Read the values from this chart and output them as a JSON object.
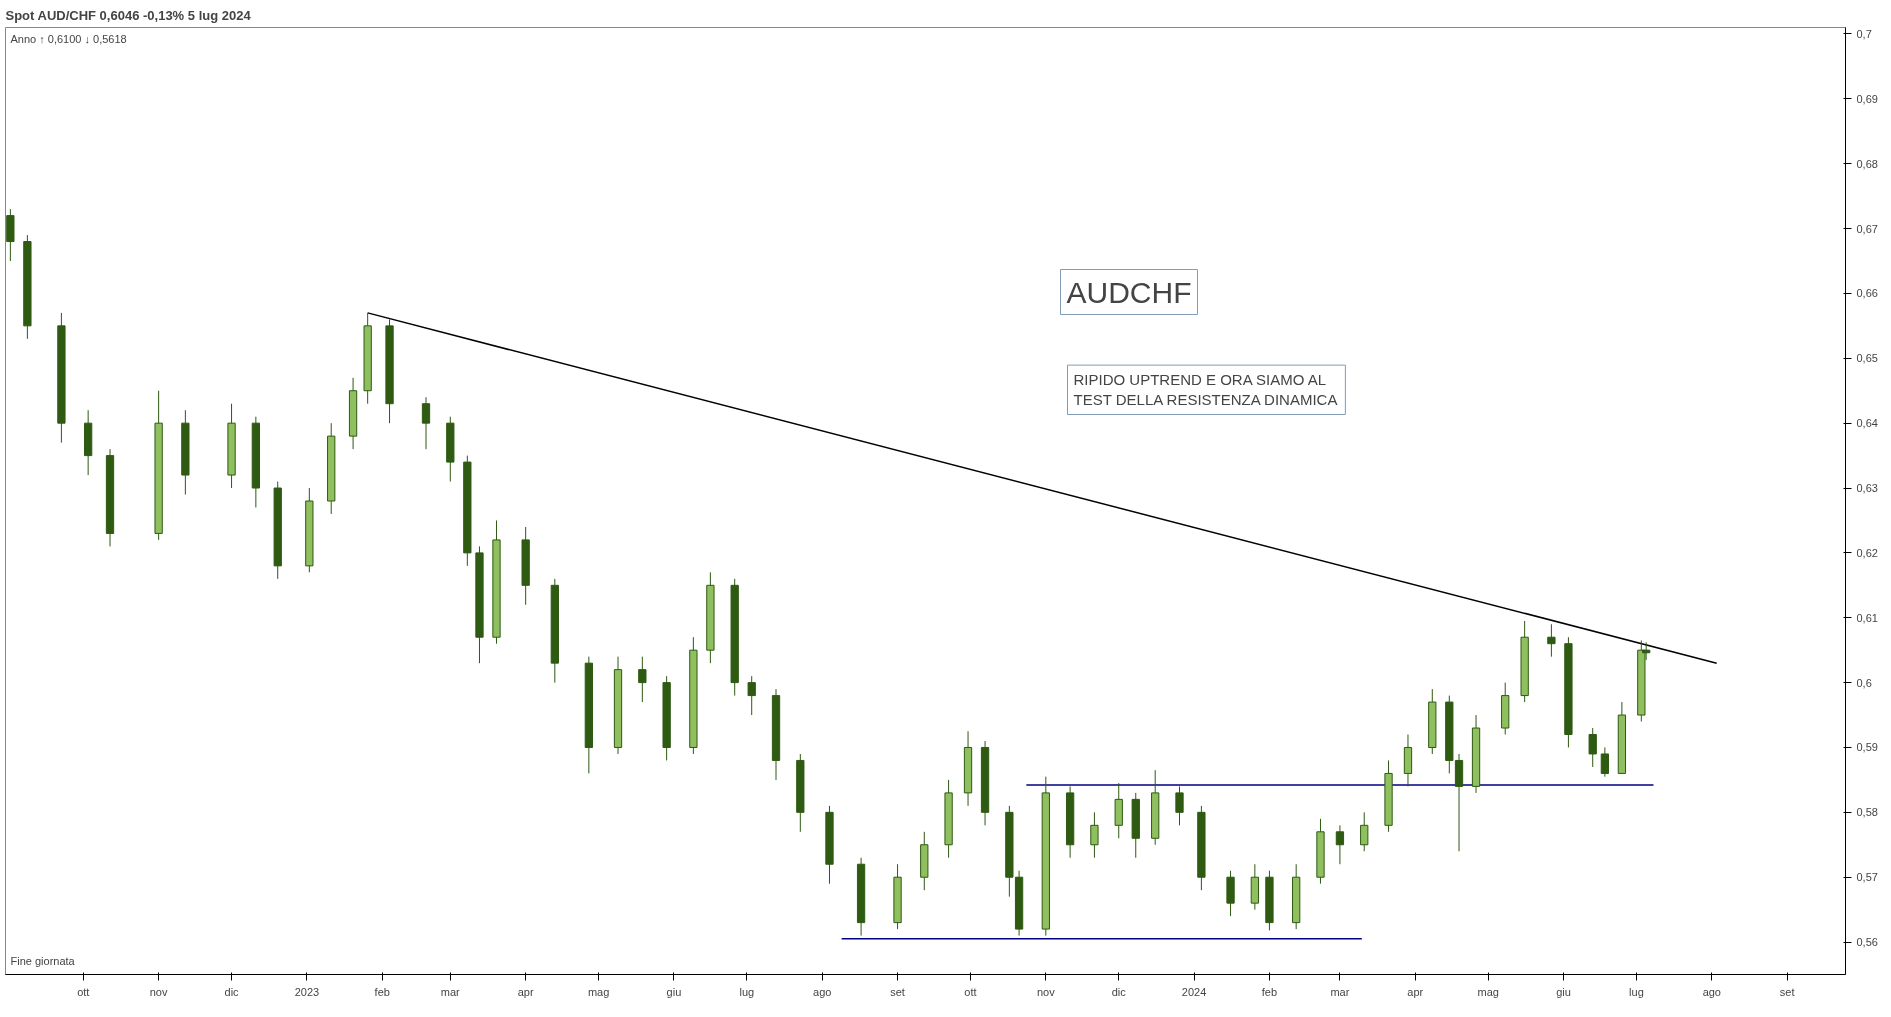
{
  "chart_data": {
    "type": "candlestick",
    "title": "Spot AUD/CHF 0,6046 -0,13% 5 lug 2024",
    "annotations": [
      "AUDCHF",
      "RIPIDO UPTREND E ORA SIAMO AL\nTEST DELLA RESISTENZA DINAMICA",
      "Anno ↑ 0,6100 ↓ 0,5618",
      "Fine giornata"
    ],
    "x": [
      "2022-09-01",
      "2022-09-08",
      "2022-09-22",
      "2022-10-03",
      "2022-10-12",
      "2022-11-01",
      "2022-11-12",
      "2022-12-01",
      "2022-12-11",
      "2022-12-20",
      "2023-01-02",
      "2023-01-11",
      "2023-01-20",
      "2023-01-26",
      "2023-02-04",
      "2023-02-19",
      "2023-03-01",
      "2023-03-08",
      "2023-03-13",
      "2023-03-20",
      "2023-04-01",
      "2023-04-13",
      "2023-04-27",
      "2023-05-09",
      "2023-05-19",
      "2023-05-29",
      "2023-06-09",
      "2023-06-16",
      "2023-06-26",
      "2023-07-03",
      "2023-07-13",
      "2023-07-23",
      "2023-08-04",
      "2023-08-17",
      "2023-09-01",
      "2023-09-12",
      "2023-09-22",
      "2023-09-30",
      "2023-10-07",
      "2023-10-17",
      "2023-10-21",
      "2023-11-01",
      "2023-11-11",
      "2023-11-21",
      "2023-12-01",
      "2023-12-08",
      "2023-12-16",
      "2023-12-26",
      "2024-01-04",
      "2024-01-16",
      "2024-01-26",
      "2024-02-01",
      "2024-02-12",
      "2024-02-22",
      "2024-03-01",
      "2024-03-11",
      "2024-03-21",
      "2024-03-29",
      "2024-04-08",
      "2024-04-15",
      "2024-04-19",
      "2024-04-26",
      "2024-05-08",
      "2024-05-16",
      "2024-05-27",
      "2024-06-03",
      "2024-06-13",
      "2024-06-18",
      "2024-06-25",
      "2024-07-03",
      "2024-07-05"
    ],
    "series": [
      {
        "color": "#2e5a12",
        "ohlc": [
          [
            0.672,
            0.673,
            0.665,
            0.668
          ],
          [
            0.668,
            0.669,
            0.653,
            0.655
          ],
          [
            0.655,
            0.657,
            0.637,
            0.64
          ],
          [
            0.64,
            0.642,
            0.632,
            0.635
          ],
          [
            0.635,
            0.636,
            0.621,
            0.623
          ],
          [
            0.623,
            0.645,
            0.622,
            0.64
          ],
          [
            0.64,
            0.642,
            0.629,
            0.632
          ],
          [
            0.632,
            0.643,
            0.63,
            0.64
          ],
          [
            0.64,
            0.641,
            0.627,
            0.63
          ],
          [
            0.63,
            0.631,
            0.616,
            0.618
          ],
          [
            0.618,
            0.63,
            0.617,
            0.628
          ],
          [
            0.628,
            0.64,
            0.626,
            0.638
          ],
          [
            0.638,
            0.647,
            0.636,
            0.645
          ],
          [
            0.645,
            0.657,
            0.643,
            0.655
          ],
          [
            0.655,
            0.656,
            0.64,
            0.643
          ],
          [
            0.643,
            0.644,
            0.636,
            0.64
          ],
          [
            0.64,
            0.641,
            0.631,
            0.634
          ],
          [
            0.634,
            0.635,
            0.618,
            0.62
          ],
          [
            0.62,
            0.621,
            0.603,
            0.607
          ],
          [
            0.607,
            0.625,
            0.606,
            0.622
          ],
          [
            0.622,
            0.624,
            0.612,
            0.615
          ],
          [
            0.615,
            0.616,
            0.6,
            0.603
          ],
          [
            0.603,
            0.604,
            0.586,
            0.59
          ],
          [
            0.59,
            0.604,
            0.589,
            0.602
          ],
          [
            0.602,
            0.604,
            0.597,
            0.6
          ],
          [
            0.6,
            0.601,
            0.588,
            0.59
          ],
          [
            0.59,
            0.607,
            0.589,
            0.605
          ],
          [
            0.605,
            0.617,
            0.603,
            0.615
          ],
          [
            0.615,
            0.616,
            0.598,
            0.6
          ],
          [
            0.6,
            0.601,
            0.595,
            0.598
          ],
          [
            0.598,
            0.599,
            0.585,
            0.588
          ],
          [
            0.588,
            0.589,
            0.577,
            0.58
          ],
          [
            0.58,
            0.581,
            0.569,
            0.572
          ],
          [
            0.572,
            0.573,
            0.561,
            0.563
          ],
          [
            0.563,
            0.572,
            0.562,
            0.57
          ],
          [
            0.57,
            0.577,
            0.568,
            0.575
          ],
          [
            0.575,
            0.585,
            0.573,
            0.583
          ],
          [
            0.583,
            0.5925,
            0.581,
            0.59
          ],
          [
            0.59,
            0.591,
            0.578,
            0.58
          ],
          [
            0.58,
            0.581,
            0.567,
            0.57
          ],
          [
            0.57,
            0.571,
            0.561,
            0.562
          ],
          [
            0.562,
            0.5855,
            0.561,
            0.583
          ],
          [
            0.583,
            0.584,
            0.573,
            0.575
          ],
          [
            0.575,
            0.58,
            0.573,
            0.578
          ],
          [
            0.578,
            0.5845,
            0.576,
            0.582
          ],
          [
            0.582,
            0.583,
            0.573,
            0.576
          ],
          [
            0.576,
            0.5865,
            0.575,
            0.583
          ],
          [
            0.583,
            0.584,
            0.578,
            0.58
          ],
          [
            0.58,
            0.581,
            0.568,
            0.57
          ],
          [
            0.57,
            0.571,
            0.564,
            0.566
          ],
          [
            0.566,
            0.572,
            0.565,
            0.57
          ],
          [
            0.57,
            0.571,
            0.5618,
            0.563
          ],
          [
            0.563,
            0.572,
            0.562,
            0.57
          ],
          [
            0.57,
            0.579,
            0.569,
            0.577
          ],
          [
            0.577,
            0.578,
            0.572,
            0.575
          ],
          [
            0.575,
            0.58,
            0.574,
            0.578
          ],
          [
            0.578,
            0.588,
            0.577,
            0.586
          ],
          [
            0.586,
            0.592,
            0.584,
            0.59
          ],
          [
            0.59,
            0.599,
            0.589,
            0.597
          ],
          [
            0.597,
            0.598,
            0.586,
            0.588
          ],
          [
            0.588,
            0.589,
            0.574,
            0.584
          ],
          [
            0.584,
            0.595,
            0.583,
            0.593
          ],
          [
            0.593,
            0.6,
            0.592,
            0.598
          ],
          [
            0.598,
            0.6095,
            0.597,
            0.607
          ],
          [
            0.607,
            0.609,
            0.604,
            0.606
          ],
          [
            0.606,
            0.607,
            0.59,
            0.592
          ],
          [
            0.592,
            0.593,
            0.587,
            0.589
          ],
          [
            0.589,
            0.59,
            0.5855,
            0.586
          ],
          [
            0.586,
            0.597,
            0.586,
            0.595
          ],
          [
            0.595,
            0.6065,
            0.594,
            0.605
          ],
          [
            0.605,
            0.6062,
            0.6035,
            0.6046
          ]
        ]
      },
      {
        "type": "line",
        "color": "#000000",
        "x": [
          "2023-01-26",
          "2024-08-03"
        ],
        "values": [
          0.657,
          0.603
        ]
      },
      {
        "type": "line",
        "color": "#000080",
        "x": [
          "2023-10-24",
          "2024-07-08"
        ],
        "values": [
          0.5842,
          0.5842
        ]
      },
      {
        "type": "line",
        "color": "#000080",
        "x": [
          "2023-08-09",
          "2024-03-10"
        ],
        "values": [
          0.5605,
          0.5605
        ]
      }
    ],
    "xlim": [
      "2022-08-30",
      "2024-09-25"
    ],
    "xticks": [
      {
        "value": "2022-10-01",
        "label": "ott"
      },
      {
        "value": "2022-11-01",
        "label": "nov"
      },
      {
        "value": "2022-12-01",
        "label": "dic"
      },
      {
        "value": "2023-01-01",
        "label": "2023"
      },
      {
        "value": "2023-02-01",
        "label": "feb"
      },
      {
        "value": "2023-03-01",
        "label": "mar"
      },
      {
        "value": "2023-04-01",
        "label": "apr"
      },
      {
        "value": "2023-05-01",
        "label": "mag"
      },
      {
        "value": "2023-06-01",
        "label": "giu"
      },
      {
        "value": "2023-07-01",
        "label": "lug"
      },
      {
        "value": "2023-08-01",
        "label": "ago"
      },
      {
        "value": "2023-09-01",
        "label": "set"
      },
      {
        "value": "2023-10-01",
        "label": "ott"
      },
      {
        "value": "2023-11-01",
        "label": "nov"
      },
      {
        "value": "2023-12-01",
        "label": "dic"
      },
      {
        "value": "2024-01-01",
        "label": "2024"
      },
      {
        "value": "2024-02-01",
        "label": "feb"
      },
      {
        "value": "2024-03-01",
        "label": "mar"
      },
      {
        "value": "2024-04-01",
        "label": "apr"
      },
      {
        "value": "2024-05-01",
        "label": "mag"
      },
      {
        "value": "2024-06-01",
        "label": "giu"
      },
      {
        "value": "2024-07-01",
        "label": "lug"
      },
      {
        "value": "2024-08-01",
        "label": "ago"
      },
      {
        "value": "2024-09-01",
        "label": "set"
      }
    ],
    "ylim": [
      0.555,
      0.701
    ],
    "yticks": [
      {
        "value": 0.56,
        "label": "0,56"
      },
      {
        "value": 0.57,
        "label": "0,57"
      },
      {
        "value": 0.58,
        "label": "0,58"
      },
      {
        "value": 0.59,
        "label": "0,59"
      },
      {
        "value": 0.6,
        "label": "0,6"
      },
      {
        "value": 0.61,
        "label": "0,61"
      },
      {
        "value": 0.62,
        "label": "0,62"
      },
      {
        "value": 0.63,
        "label": "0,63"
      },
      {
        "value": 0.64,
        "label": "0,64"
      },
      {
        "value": 0.65,
        "label": "0,65"
      },
      {
        "value": 0.66,
        "label": "0,66"
      },
      {
        "value": 0.67,
        "label": "0,67"
      },
      {
        "value": 0.68,
        "label": "0,68"
      },
      {
        "value": 0.69,
        "label": "0,69"
      },
      {
        "value": 0.7,
        "label": "0,7"
      }
    ],
    "grid": false
  }
}
